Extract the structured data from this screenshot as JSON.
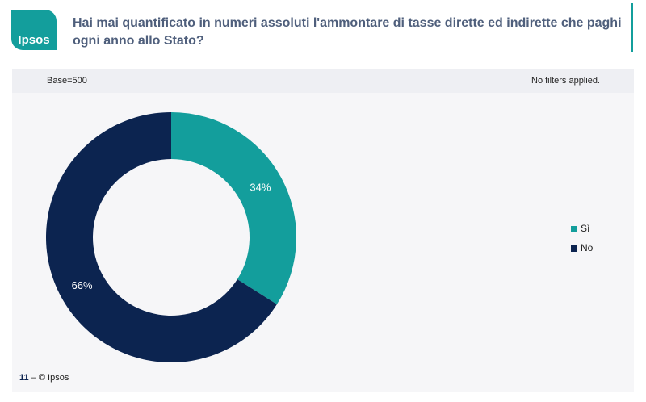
{
  "logo": "Ipsos",
  "base": "Base=500",
  "filters": "No filters applied.",
  "page_number": "11",
  "footer": "– © Ipsos",
  "chart_data": {
    "type": "pie",
    "donut": true,
    "title": "Hai mai quantificato in numeri assoluti l'ammontare di tasse dirette ed indirette che paghi ogni anno allo Stato?",
    "categories": [
      "Sì",
      "No"
    ],
    "values": [
      34,
      66
    ],
    "value_labels": [
      "34%",
      "66%"
    ],
    "colors": [
      "#139e9c",
      "#0c2450"
    ],
    "legend": "right"
  }
}
